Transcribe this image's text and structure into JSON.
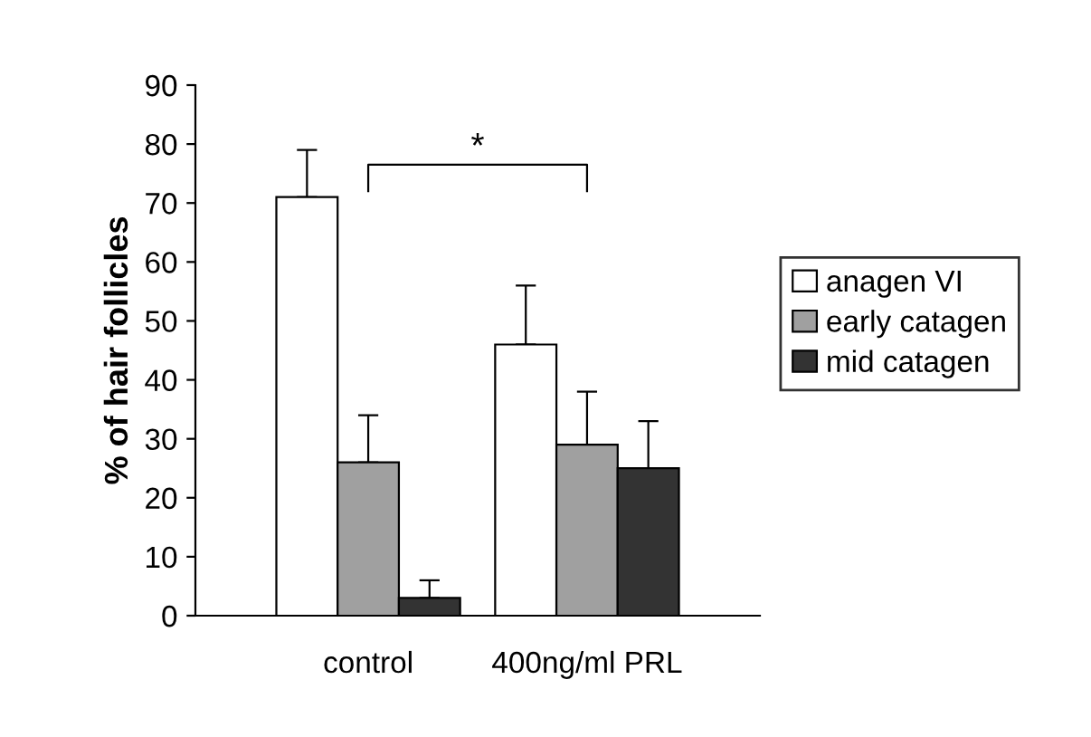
{
  "chart_data": {
    "type": "bar",
    "ylabel": "% of hair follicles",
    "categories": [
      "control",
      "400ng/ml PRL"
    ],
    "series": [
      {
        "name": "anagen VI",
        "color": "#ffffff",
        "values": [
          71,
          46
        ],
        "errors": [
          [
            71,
            79
          ],
          [
            46,
            56
          ]
        ]
      },
      {
        "name": "early catagen",
        "color": "#a0a0a0",
        "values": [
          26,
          29
        ],
        "errors": [
          [
            26,
            34
          ],
          [
            29,
            38
          ]
        ]
      },
      {
        "name": "mid catagen",
        "color": "#333333",
        "values": [
          3,
          25
        ],
        "errors": [
          [
            3,
            6
          ],
          [
            25,
            33
          ]
        ]
      }
    ],
    "ylim": [
      0,
      90
    ],
    "yticks": [
      0,
      10,
      20,
      30,
      40,
      50,
      60,
      70,
      80,
      90
    ],
    "grid": false,
    "legend": "right",
    "annotations": [
      "*"
    ]
  }
}
